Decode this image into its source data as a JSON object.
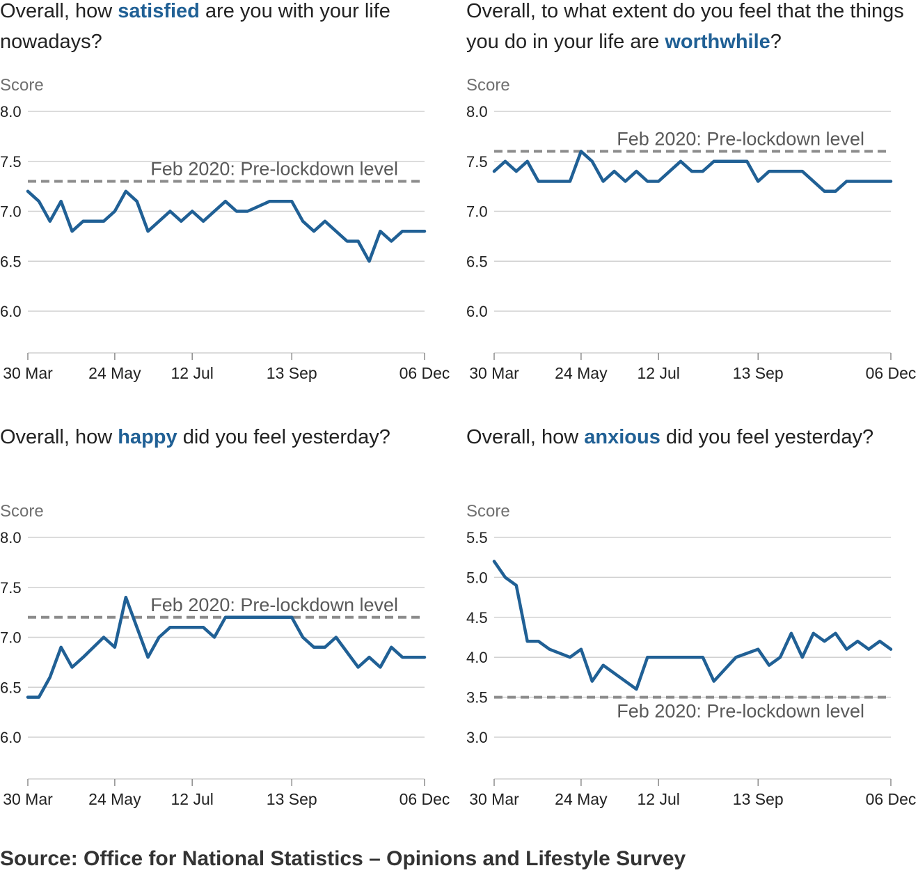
{
  "colors": {
    "line": "#206095",
    "baseline": "#8c8c8c",
    "grid": "#d0d0d0",
    "axis_text": "#222222",
    "score_label": "#707070"
  },
  "source": "Source: Office for National Statistics – Opinions and Lifestyle Survey",
  "chart_data": [
    {
      "type": "line",
      "title_parts": [
        "Overall, how ",
        "satisfied",
        " are you with your life nowadays?"
      ],
      "ylabel": "Score",
      "yticks": [
        "8.0",
        "7.5",
        "7.0",
        "6.5",
        "6.0"
      ],
      "ylim": [
        5.6,
        8.0
      ],
      "xticks": [
        "30 Mar",
        "24 May",
        "12 Jul",
        "13 Sep",
        "06 Dec"
      ],
      "baseline": {
        "label": "Feb 2020: Pre-lockdown level",
        "value": 7.3,
        "label_side": "above"
      },
      "series": [
        {
          "x": [
            "2020-03-30",
            "2020-04-06",
            "2020-04-13",
            "2020-04-20",
            "2020-04-27",
            "2020-05-04",
            "2020-05-17",
            "2020-05-24",
            "2020-05-31",
            "2020-06-07",
            "2020-06-14",
            "2020-06-28",
            "2020-07-05",
            "2020-07-12",
            "2020-07-19",
            "2020-08-02",
            "2020-08-09",
            "2020-08-16",
            "2020-08-30",
            "2020-09-06",
            "2020-09-13",
            "2020-09-20",
            "2020-09-27",
            "2020-10-04",
            "2020-10-18",
            "2020-10-25",
            "2020-11-01",
            "2020-11-08",
            "2020-11-15",
            "2020-11-22",
            "2020-11-29",
            "2020-12-06"
          ],
          "values": [
            7.2,
            7.1,
            6.9,
            7.1,
            6.8,
            6.9,
            6.9,
            7.0,
            7.2,
            7.1,
            6.8,
            7.0,
            6.9,
            7.0,
            6.9,
            7.1,
            7.0,
            7.0,
            7.1,
            7.1,
            7.1,
            6.9,
            6.8,
            6.9,
            6.7,
            6.7,
            6.5,
            6.8,
            6.7,
            6.8,
            6.8,
            6.8
          ]
        }
      ]
    },
    {
      "type": "line",
      "title_parts": [
        "Overall, to what extent do you feel that the things you do in your life are ",
        "worthwhile",
        "?"
      ],
      "ylabel": "Score",
      "yticks": [
        "8.0",
        "7.5",
        "7.0",
        "6.5",
        "6.0"
      ],
      "ylim": [
        5.6,
        8.0
      ],
      "xticks": [
        "30 Mar",
        "24 May",
        "12 Jul",
        "13 Sep",
        "06 Dec"
      ],
      "baseline": {
        "label": "Feb 2020: Pre-lockdown level",
        "value": 7.6,
        "label_side": "above"
      },
      "series": [
        {
          "x": [
            "2020-03-30",
            "2020-04-06",
            "2020-04-13",
            "2020-04-20",
            "2020-04-27",
            "2020-05-17",
            "2020-05-24",
            "2020-05-31",
            "2020-06-07",
            "2020-06-14",
            "2020-06-21",
            "2020-06-28",
            "2020-07-05",
            "2020-07-12",
            "2020-07-19",
            "2020-07-26",
            "2020-08-02",
            "2020-08-09",
            "2020-08-16",
            "2020-08-30",
            "2020-09-06",
            "2020-09-13",
            "2020-09-20",
            "2020-09-27",
            "2020-10-11",
            "2020-10-25",
            "2020-11-01",
            "2020-11-08",
            "2020-11-15",
            "2020-12-06"
          ],
          "values": [
            7.4,
            7.5,
            7.4,
            7.5,
            7.3,
            7.3,
            7.6,
            7.5,
            7.3,
            7.4,
            7.3,
            7.4,
            7.3,
            7.3,
            7.4,
            7.5,
            7.4,
            7.4,
            7.5,
            7.5,
            7.5,
            7.3,
            7.4,
            7.4,
            7.4,
            7.2,
            7.2,
            7.3,
            7.3,
            7.3
          ]
        }
      ]
    },
    {
      "type": "line",
      "title_parts": [
        "Overall, how ",
        "happy",
        " did you feel yesterday?"
      ],
      "ylabel": "Score",
      "yticks": [
        "8.0",
        "7.5",
        "7.0",
        "6.5",
        "6.0"
      ],
      "ylim": [
        5.6,
        8.0
      ],
      "xticks": [
        "30 Mar",
        "24 May",
        "12 Jul",
        "13 Sep",
        "06 Dec"
      ],
      "baseline": {
        "label": "Feb 2020: Pre-lockdown level",
        "value": 7.2,
        "label_side": "above"
      },
      "series": [
        {
          "x": [
            "2020-03-30",
            "2020-04-06",
            "2020-04-13",
            "2020-04-20",
            "2020-04-27",
            "2020-05-04",
            "2020-05-17",
            "2020-05-24",
            "2020-05-31",
            "2020-06-07",
            "2020-06-14",
            "2020-06-21",
            "2020-06-28",
            "2020-07-05",
            "2020-07-12",
            "2020-07-19",
            "2020-07-26",
            "2020-08-02",
            "2020-08-09",
            "2020-08-30",
            "2020-09-06",
            "2020-09-13",
            "2020-09-20",
            "2020-09-27",
            "2020-10-04",
            "2020-10-11",
            "2020-10-25",
            "2020-11-01",
            "2020-11-08",
            "2020-11-15",
            "2020-11-22",
            "2020-11-29",
            "2020-12-06"
          ],
          "values": [
            6.4,
            6.4,
            6.6,
            6.9,
            6.7,
            6.8,
            7.0,
            6.9,
            7.4,
            7.1,
            6.8,
            7.0,
            7.1,
            7.1,
            7.1,
            7.1,
            7.0,
            7.2,
            7.2,
            7.2,
            7.2,
            7.2,
            7.0,
            6.9,
            6.9,
            7.0,
            6.7,
            6.8,
            6.7,
            6.9,
            6.8,
            6.8,
            6.8
          ]
        }
      ]
    },
    {
      "type": "line",
      "title_parts": [
        "Overall, how ",
        "anxious",
        " did you feel yesterday?"
      ],
      "ylabel": "Score",
      "yticks": [
        "5.5",
        "5.0",
        "4.5",
        "4.0",
        "3.5",
        "3.0"
      ],
      "ylim": [
        2.6,
        5.5
      ],
      "xticks": [
        "30 Mar",
        "24 May",
        "12 Jul",
        "13 Sep",
        "06 Dec"
      ],
      "baseline": {
        "label": "Feb 2020: Pre-lockdown level",
        "value": 3.5,
        "label_side": "below"
      },
      "series": [
        {
          "x": [
            "2020-03-30",
            "2020-04-06",
            "2020-04-13",
            "2020-04-20",
            "2020-04-27",
            "2020-05-04",
            "2020-05-17",
            "2020-05-24",
            "2020-05-31",
            "2020-06-07",
            "2020-06-28",
            "2020-07-05",
            "2020-07-12",
            "2020-07-19",
            "2020-07-26",
            "2020-08-02",
            "2020-08-09",
            "2020-08-16",
            "2020-08-23",
            "2020-08-30",
            "2020-09-06",
            "2020-09-13",
            "2020-09-20",
            "2020-09-27",
            "2020-10-04",
            "2020-10-11",
            "2020-10-18",
            "2020-10-25",
            "2020-11-01",
            "2020-11-08",
            "2020-11-15",
            "2020-11-22",
            "2020-11-29",
            "2020-12-06"
          ],
          "values": [
            5.2,
            5.0,
            4.9,
            4.2,
            4.2,
            4.1,
            4.0,
            4.1,
            3.7,
            3.9,
            3.6,
            4.0,
            4.0,
            4.0,
            4.0,
            4.0,
            4.0,
            3.7,
            3.85,
            4.0,
            4.05,
            4.1,
            3.9,
            4.0,
            4.3,
            4.0,
            4.3,
            4.2,
            4.3,
            4.1,
            4.2,
            4.1,
            4.2,
            4.1
          ]
        }
      ]
    }
  ]
}
